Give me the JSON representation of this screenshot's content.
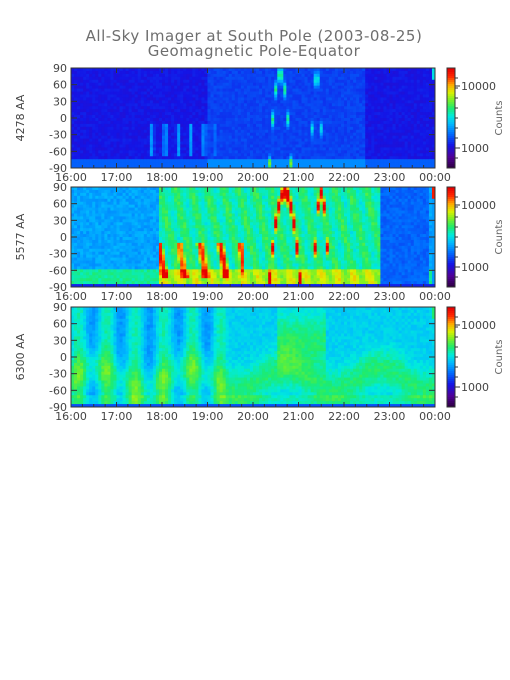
{
  "figure": {
    "title_line1": "All-Sky Imager at South Pole (2003-08-25)",
    "title_line2": "Geomagnetic Pole-Equator"
  },
  "chart_data": [
    {
      "type": "heatmap",
      "ylabel": "4278 AA",
      "colorbar_label": "Counts",
      "colorbar_ticks": [
        "10000",
        "1000"
      ],
      "x_ticks": [
        "16:00",
        "17:00",
        "18:00",
        "19:00",
        "20:00",
        "21:00",
        "22:00",
        "23:00",
        "00:00"
      ],
      "y_ticks": [
        90,
        60,
        30,
        0,
        -30,
        -60,
        -90
      ],
      "ylim": [
        -90,
        90
      ],
      "colormap": "rainbow",
      "regime": "violet"
    },
    {
      "type": "heatmap",
      "ylabel": "5577 AA",
      "colorbar_label": "Counts",
      "colorbar_ticks": [
        "10000",
        "1000"
      ],
      "x_ticks": [
        "16:00",
        "17:00",
        "18:00",
        "19:00",
        "20:00",
        "21:00",
        "22:00",
        "23:00",
        "00:00"
      ],
      "y_ticks": [
        90,
        60,
        30,
        0,
        -30,
        -60,
        -90
      ],
      "ylim": [
        -90,
        90
      ],
      "colormap": "rainbow",
      "regime": "green"
    },
    {
      "type": "heatmap",
      "ylabel": "6300 AA",
      "colorbar_label": "Counts",
      "colorbar_ticks": [
        "10000",
        "1000"
      ],
      "x_ticks": [
        "16:00",
        "17:00",
        "18:00",
        "19:00",
        "20:00",
        "21:00",
        "22:00",
        "23:00",
        "00:00"
      ],
      "y_ticks": [
        90,
        60,
        30,
        0,
        -30,
        -60,
        -90
      ],
      "ylim": [
        -90,
        90
      ],
      "colormap": "rainbow",
      "regime": "red"
    }
  ]
}
